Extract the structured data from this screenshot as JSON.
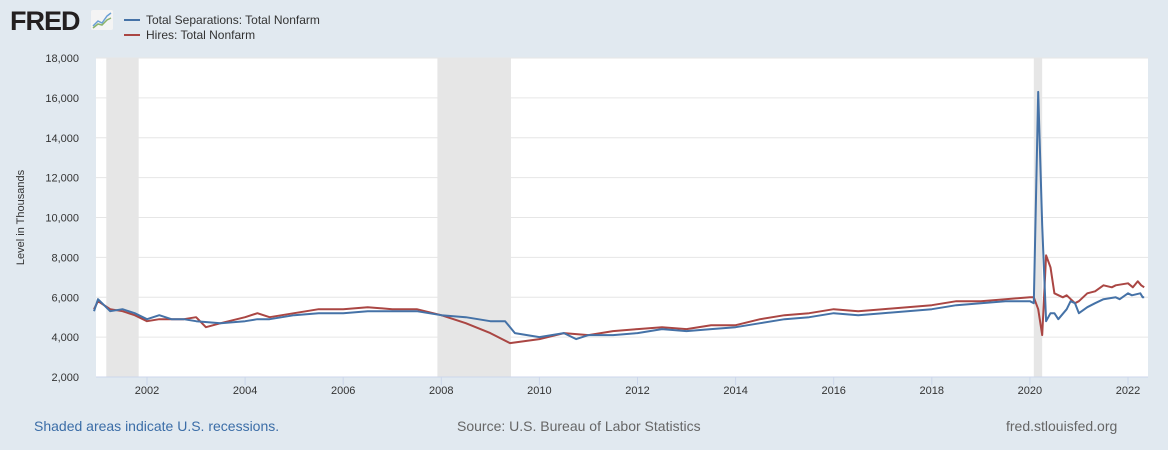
{
  "header": {
    "logo": "FRED"
  },
  "chart_data": {
    "type": "line",
    "title": "",
    "ylabel": "Level in Thousands",
    "xlabel": "",
    "ylim": [
      2000,
      18000
    ],
    "xlim": [
      2000.92,
      2022.33
    ],
    "yticks": [
      "2,000",
      "4,000",
      "6,000",
      "8,000",
      "10,000",
      "12,000",
      "14,000",
      "16,000",
      "18,000"
    ],
    "yticks_values": [
      2000,
      4000,
      6000,
      8000,
      10000,
      12000,
      14000,
      16000,
      18000
    ],
    "xticks": [
      "2002",
      "2004",
      "2006",
      "2008",
      "2010",
      "2012",
      "2014",
      "2016",
      "2018",
      "2020",
      "2022"
    ],
    "recessions": [
      [
        2001.17,
        2001.83
      ],
      [
        2007.92,
        2009.42
      ],
      [
        2020.08,
        2020.25
      ]
    ],
    "legend_position": "top-left",
    "x": [],
    "series": [
      {
        "name": "Total Separations: Total Nonfarm",
        "color": "#4572a7",
        "points": [
          [
            2000.92,
            5300
          ],
          [
            2001.0,
            5900
          ],
          [
            2001.25,
            5300
          ],
          [
            2001.5,
            5400
          ],
          [
            2001.75,
            5200
          ],
          [
            2002,
            4900
          ],
          [
            2002.25,
            5100
          ],
          [
            2002.5,
            4900
          ],
          [
            2002.75,
            4900
          ],
          [
            2003,
            4800
          ],
          [
            2003.5,
            4700
          ],
          [
            2004,
            4800
          ],
          [
            2004.25,
            4900
          ],
          [
            2004.5,
            4900
          ],
          [
            2005,
            5100
          ],
          [
            2005.5,
            5200
          ],
          [
            2006,
            5200
          ],
          [
            2006.5,
            5300
          ],
          [
            2007,
            5300
          ],
          [
            2007.5,
            5300
          ],
          [
            2008,
            5100
          ],
          [
            2008.5,
            5000
          ],
          [
            2009,
            4800
          ],
          [
            2009.3,
            4800
          ],
          [
            2009.5,
            4200
          ],
          [
            2010,
            4000
          ],
          [
            2010.5,
            4200
          ],
          [
            2010.75,
            3900
          ],
          [
            2011,
            4100
          ],
          [
            2011.5,
            4100
          ],
          [
            2012,
            4200
          ],
          [
            2012.5,
            4400
          ],
          [
            2013,
            4300
          ],
          [
            2013.5,
            4400
          ],
          [
            2014,
            4500
          ],
          [
            2014.5,
            4700
          ],
          [
            2015,
            4900
          ],
          [
            2015.5,
            5000
          ],
          [
            2016,
            5200
          ],
          [
            2016.5,
            5100
          ],
          [
            2017,
            5200
          ],
          [
            2017.5,
            5300
          ],
          [
            2018,
            5400
          ],
          [
            2018.5,
            5600
          ],
          [
            2019,
            5700
          ],
          [
            2019.5,
            5800
          ],
          [
            2020.0,
            5800
          ],
          [
            2020.08,
            5700
          ],
          [
            2020.17,
            16300
          ],
          [
            2020.25,
            9600
          ],
          [
            2020.33,
            4800
          ],
          [
            2020.42,
            5200
          ],
          [
            2020.5,
            5200
          ],
          [
            2020.58,
            4900
          ],
          [
            2020.75,
            5400
          ],
          [
            2020.83,
            5800
          ],
          [
            2020.92,
            5700
          ],
          [
            2021,
            5200
          ],
          [
            2021.17,
            5500
          ],
          [
            2021.33,
            5700
          ],
          [
            2021.5,
            5900
          ],
          [
            2021.75,
            6000
          ],
          [
            2021.83,
            5900
          ],
          [
            2022,
            6200
          ],
          [
            2022.08,
            6100
          ],
          [
            2022.25,
            6200
          ],
          [
            2022.3,
            6000
          ],
          [
            2022.33,
            6000
          ]
        ]
      },
      {
        "name": "Hires: Total Nonfarm",
        "color": "#aa4643",
        "points": [
          [
            2000.92,
            5400
          ],
          [
            2001.0,
            5800
          ],
          [
            2001.25,
            5400
          ],
          [
            2001.5,
            5300
          ],
          [
            2001.75,
            5100
          ],
          [
            2002,
            4800
          ],
          [
            2002.25,
            4900
          ],
          [
            2002.5,
            4900
          ],
          [
            2002.75,
            4900
          ],
          [
            2003,
            5000
          ],
          [
            2003.2,
            4500
          ],
          [
            2003.5,
            4700
          ],
          [
            2004,
            5000
          ],
          [
            2004.25,
            5200
          ],
          [
            2004.5,
            5000
          ],
          [
            2005,
            5200
          ],
          [
            2005.5,
            5400
          ],
          [
            2006,
            5400
          ],
          [
            2006.5,
            5500
          ],
          [
            2007,
            5400
          ],
          [
            2007.5,
            5400
          ],
          [
            2008,
            5100
          ],
          [
            2008.5,
            4700
          ],
          [
            2009,
            4200
          ],
          [
            2009.4,
            3700
          ],
          [
            2010,
            3900
          ],
          [
            2010.5,
            4200
          ],
          [
            2011,
            4100
          ],
          [
            2011.5,
            4300
          ],
          [
            2012,
            4400
          ],
          [
            2012.5,
            4500
          ],
          [
            2013,
            4400
          ],
          [
            2013.5,
            4600
          ],
          [
            2014,
            4600
          ],
          [
            2014.5,
            4900
          ],
          [
            2015,
            5100
          ],
          [
            2015.5,
            5200
          ],
          [
            2016,
            5400
          ],
          [
            2016.5,
            5300
          ],
          [
            2017,
            5400
          ],
          [
            2017.5,
            5500
          ],
          [
            2018,
            5600
          ],
          [
            2018.5,
            5800
          ],
          [
            2019,
            5800
          ],
          [
            2019.5,
            5900
          ],
          [
            2020.0,
            6000
          ],
          [
            2020.08,
            6000
          ],
          [
            2020.17,
            5400
          ],
          [
            2020.25,
            4100
          ],
          [
            2020.33,
            8100
          ],
          [
            2020.42,
            7500
          ],
          [
            2020.5,
            6200
          ],
          [
            2020.67,
            6000
          ],
          [
            2020.75,
            6100
          ],
          [
            2020.92,
            5700
          ],
          [
            2021,
            5800
          ],
          [
            2021.17,
            6200
          ],
          [
            2021.33,
            6300
          ],
          [
            2021.5,
            6600
          ],
          [
            2021.67,
            6500
          ],
          [
            2021.75,
            6600
          ],
          [
            2022,
            6700
          ],
          [
            2022.1,
            6500
          ],
          [
            2022.2,
            6800
          ],
          [
            2022.27,
            6600
          ],
          [
            2022.33,
            6500
          ]
        ]
      }
    ]
  },
  "footer": {
    "recession_note": "Shaded areas indicate U.S. recessions.",
    "source": "Source: U.S. Bureau of Labor Statistics",
    "site": "fred.stlouisfed.org"
  }
}
